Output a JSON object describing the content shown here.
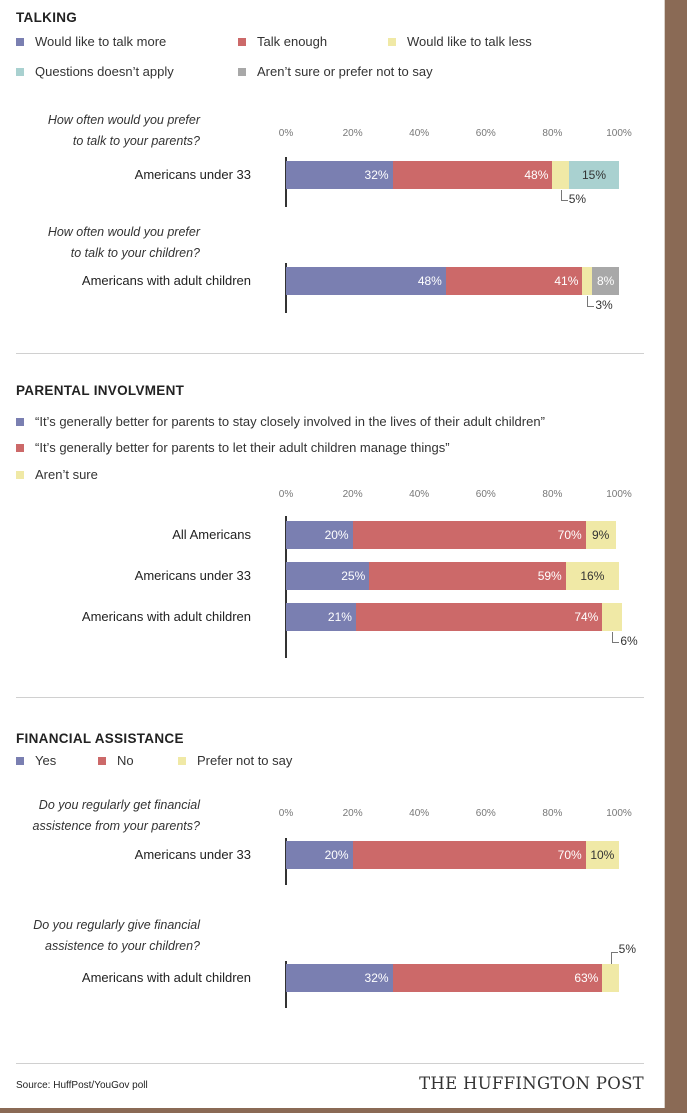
{
  "sections": {
    "talking": {
      "title": "TALKING",
      "legend": [
        "Would like to talk more",
        "Talk enough",
        "Would like to talk less",
        "Questions doesn’t apply",
        "Aren’t sure or prefer not to say"
      ],
      "questions": [
        "How often would you prefer\nto talk to your parents?",
        "How often would you prefer\nto talk to your children?"
      ]
    },
    "parental": {
      "title": "PARENTAL INVOLVMENT",
      "legend": [
        "“It’s generally better for parents to stay closely involved in the lives of their adult children”",
        "“It’s generally better for parents to let their adult children manage things”",
        "Aren’t sure"
      ]
    },
    "financial": {
      "title": "FINANCIAL ASSISTANCE",
      "legend": [
        "Yes",
        "No",
        "Prefer not to say"
      ],
      "questions": [
        "Do you regularly get financial\nassistence from your parents?",
        "Do you regularly give financial\nassistence to your children?"
      ]
    }
  },
  "colors": {
    "blue": "#7a7fb1",
    "red": "#cc6969",
    "yellow": "#f0e9a6",
    "teal": "#a9d1d0",
    "gray": "#a8a8a8"
  },
  "axis_ticks": [
    "0%",
    "20%",
    "40%",
    "60%",
    "80%",
    "100%"
  ],
  "chart_data": [
    {
      "type": "bar",
      "orientation": "horizontal",
      "stacked": true,
      "title": "TALKING",
      "xlim": [
        0,
        100
      ],
      "series_names": [
        "Would like to talk more",
        "Talk enough",
        "Would like to talk less",
        "Questions doesn’t apply",
        "Aren’t sure or prefer not to say"
      ],
      "rows": [
        {
          "label": "Americans under 33",
          "values": [
            32,
            48,
            5,
            15,
            0
          ]
        },
        {
          "label": "Americans with adult children",
          "values": [
            48,
            41,
            3,
            0,
            8
          ]
        }
      ]
    },
    {
      "type": "bar",
      "orientation": "horizontal",
      "stacked": true,
      "title": "PARENTAL INVOLVMENT",
      "xlim": [
        0,
        100
      ],
      "series_names": [
        "“It’s generally better for parents to stay closely involved in the lives of their adult children”",
        "“It’s generally better for parents to let their adult children manage things”",
        "Aren’t sure"
      ],
      "rows": [
        {
          "label": "All Americans",
          "values": [
            20,
            70,
            9
          ]
        },
        {
          "label": "Americans under 33",
          "values": [
            25,
            59,
            16
          ]
        },
        {
          "label": "Americans with adult children",
          "values": [
            21,
            74,
            6
          ]
        }
      ]
    },
    {
      "type": "bar",
      "orientation": "horizontal",
      "stacked": true,
      "title": "FINANCIAL ASSISTANCE",
      "xlim": [
        0,
        100
      ],
      "series_names": [
        "Yes",
        "No",
        "Prefer not to say"
      ],
      "rows": [
        {
          "label": "Americans under 33",
          "values": [
            20,
            70,
            10
          ]
        },
        {
          "label": "Americans with adult children",
          "values": [
            32,
            63,
            5
          ]
        }
      ]
    }
  ],
  "footer": {
    "source": "Source: HuffPost/YouGov poll",
    "brand": "THE HUFFINGTON POST"
  }
}
